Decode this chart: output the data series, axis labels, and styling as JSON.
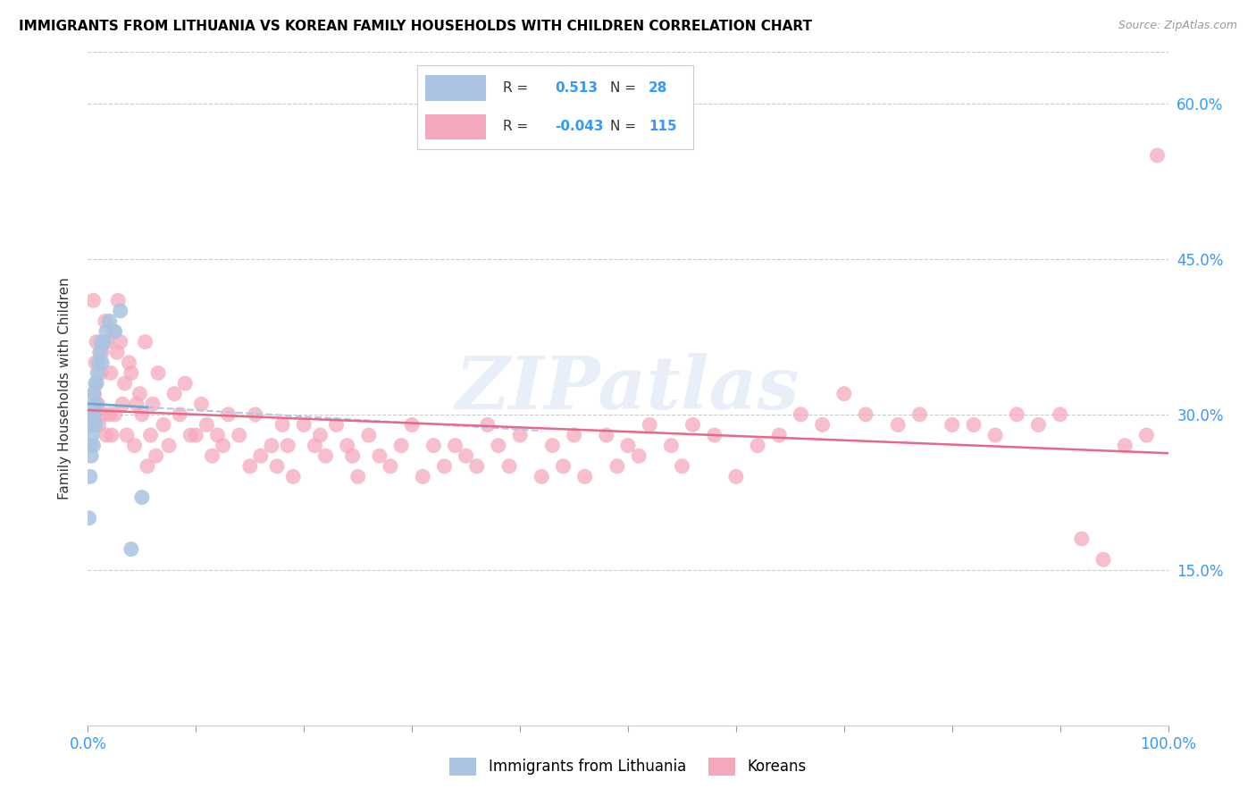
{
  "title": "IMMIGRANTS FROM LITHUANIA VS KOREAN FAMILY HOUSEHOLDS WITH CHILDREN CORRELATION CHART",
  "source": "Source: ZipAtlas.com",
  "ylabel": "Family Households with Children",
  "xlim": [
    0,
    1.0
  ],
  "ylim": [
    0,
    0.65
  ],
  "ytick_positions": [
    0.15,
    0.3,
    0.45,
    0.6
  ],
  "ytick_labels": [
    "15.0%",
    "30.0%",
    "45.0%",
    "60.0%"
  ],
  "r_lithuania": 0.513,
  "n_lithuania": 28,
  "r_korean": -0.043,
  "n_korean": 115,
  "color_lithuania": "#aac4e2",
  "color_korean": "#f5a8bb",
  "color_line_lithuania": "#6aaad4",
  "color_line_korean": "#e8688a",
  "watermark": "ZIPatlas",
  "lithuania_x": [
    0.001,
    0.002,
    0.002,
    0.003,
    0.003,
    0.004,
    0.004,
    0.005,
    0.005,
    0.005,
    0.006,
    0.006,
    0.007,
    0.007,
    0.008,
    0.008,
    0.009,
    0.01,
    0.011,
    0.012,
    0.013,
    0.015,
    0.017,
    0.02,
    0.025,
    0.03,
    0.04,
    0.05
  ],
  "lithuania_y": [
    0.2,
    0.24,
    0.27,
    0.26,
    0.29,
    0.28,
    0.3,
    0.27,
    0.29,
    0.32,
    0.3,
    0.31,
    0.29,
    0.33,
    0.31,
    0.33,
    0.34,
    0.35,
    0.36,
    0.37,
    0.35,
    0.37,
    0.38,
    0.39,
    0.38,
    0.4,
    0.17,
    0.22
  ],
  "korean_x": [
    0.004,
    0.005,
    0.006,
    0.007,
    0.008,
    0.009,
    0.01,
    0.012,
    0.013,
    0.015,
    0.016,
    0.017,
    0.018,
    0.02,
    0.021,
    0.022,
    0.024,
    0.025,
    0.027,
    0.028,
    0.03,
    0.032,
    0.034,
    0.036,
    0.038,
    0.04,
    0.043,
    0.045,
    0.048,
    0.05,
    0.053,
    0.055,
    0.058,
    0.06,
    0.063,
    0.065,
    0.07,
    0.075,
    0.08,
    0.085,
    0.09,
    0.095,
    0.1,
    0.105,
    0.11,
    0.115,
    0.12,
    0.125,
    0.13,
    0.14,
    0.15,
    0.155,
    0.16,
    0.17,
    0.175,
    0.18,
    0.185,
    0.19,
    0.2,
    0.21,
    0.215,
    0.22,
    0.23,
    0.24,
    0.245,
    0.25,
    0.26,
    0.27,
    0.28,
    0.29,
    0.3,
    0.31,
    0.32,
    0.33,
    0.34,
    0.35,
    0.36,
    0.37,
    0.38,
    0.39,
    0.4,
    0.42,
    0.43,
    0.44,
    0.45,
    0.46,
    0.48,
    0.49,
    0.5,
    0.51,
    0.52,
    0.54,
    0.55,
    0.56,
    0.58,
    0.6,
    0.62,
    0.64,
    0.66,
    0.68,
    0.7,
    0.72,
    0.75,
    0.77,
    0.8,
    0.82,
    0.84,
    0.86,
    0.88,
    0.9,
    0.92,
    0.94,
    0.96,
    0.98,
    0.99
  ],
  "korean_y": [
    0.3,
    0.41,
    0.32,
    0.35,
    0.37,
    0.31,
    0.29,
    0.34,
    0.36,
    0.3,
    0.39,
    0.28,
    0.37,
    0.3,
    0.34,
    0.28,
    0.38,
    0.3,
    0.36,
    0.41,
    0.37,
    0.31,
    0.33,
    0.28,
    0.35,
    0.34,
    0.27,
    0.31,
    0.32,
    0.3,
    0.37,
    0.25,
    0.28,
    0.31,
    0.26,
    0.34,
    0.29,
    0.27,
    0.32,
    0.3,
    0.33,
    0.28,
    0.28,
    0.31,
    0.29,
    0.26,
    0.28,
    0.27,
    0.3,
    0.28,
    0.25,
    0.3,
    0.26,
    0.27,
    0.25,
    0.29,
    0.27,
    0.24,
    0.29,
    0.27,
    0.28,
    0.26,
    0.29,
    0.27,
    0.26,
    0.24,
    0.28,
    0.26,
    0.25,
    0.27,
    0.29,
    0.24,
    0.27,
    0.25,
    0.27,
    0.26,
    0.25,
    0.29,
    0.27,
    0.25,
    0.28,
    0.24,
    0.27,
    0.25,
    0.28,
    0.24,
    0.28,
    0.25,
    0.27,
    0.26,
    0.29,
    0.27,
    0.25,
    0.29,
    0.28,
    0.24,
    0.27,
    0.28,
    0.3,
    0.29,
    0.32,
    0.3,
    0.29,
    0.3,
    0.29,
    0.29,
    0.28,
    0.3,
    0.29,
    0.3,
    0.18,
    0.16,
    0.27,
    0.28,
    0.55
  ]
}
